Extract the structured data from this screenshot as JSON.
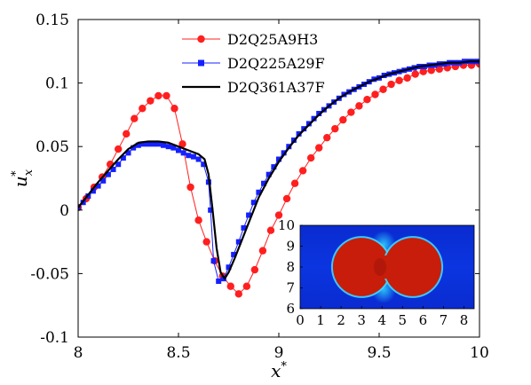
{
  "chart_data": {
    "type": "line",
    "title": "",
    "xlabel": "x",
    "xlabel_sup": "*",
    "ylabel": "u",
    "ylabel_sub": "x",
    "ylabel_sup": "*",
    "xlim": [
      8,
      10
    ],
    "ylim": [
      -0.1,
      0.15
    ],
    "xticks": [
      8,
      8.5,
      9,
      9.5,
      10
    ],
    "xtick_labels": [
      "8",
      "8.5",
      "9",
      "9.5",
      "10"
    ],
    "yticks": [
      -0.1,
      -0.05,
      0,
      0.05,
      0.1,
      0.15
    ],
    "ytick_labels": [
      "-0.1",
      "-0.05",
      "0",
      "0.05",
      "0.1",
      "0.15"
    ],
    "grid": false,
    "legend_position": "top-center",
    "series": [
      {
        "name": "D2Q25A9H3",
        "color": "#ff1f1f",
        "marker": "circle",
        "points": [
          [
            8.0,
            0.002
          ],
          [
            8.04,
            0.009
          ],
          [
            8.08,
            0.018
          ],
          [
            8.12,
            0.026
          ],
          [
            8.16,
            0.036
          ],
          [
            8.2,
            0.048
          ],
          [
            8.24,
            0.06
          ],
          [
            8.28,
            0.072
          ],
          [
            8.32,
            0.08
          ],
          [
            8.36,
            0.086
          ],
          [
            8.4,
            0.09
          ],
          [
            8.44,
            0.09
          ],
          [
            8.48,
            0.08
          ],
          [
            8.52,
            0.052
          ],
          [
            8.56,
            0.018
          ],
          [
            8.6,
            -0.008
          ],
          [
            8.64,
            -0.025
          ],
          [
            8.68,
            -0.04
          ],
          [
            8.72,
            -0.052
          ],
          [
            8.76,
            -0.06
          ],
          [
            8.8,
            -0.066
          ],
          [
            8.84,
            -0.06
          ],
          [
            8.88,
            -0.047
          ],
          [
            8.92,
            -0.032
          ],
          [
            8.96,
            -0.016
          ],
          [
            9.0,
            -0.004
          ],
          [
            9.04,
            0.009
          ],
          [
            9.08,
            0.021
          ],
          [
            9.12,
            0.031
          ],
          [
            9.16,
            0.041
          ],
          [
            9.2,
            0.049
          ],
          [
            9.24,
            0.057
          ],
          [
            9.28,
            0.064
          ],
          [
            9.32,
            0.071
          ],
          [
            9.36,
            0.077
          ],
          [
            9.4,
            0.082
          ],
          [
            9.44,
            0.087
          ],
          [
            9.48,
            0.091
          ],
          [
            9.52,
            0.095
          ],
          [
            9.56,
            0.099
          ],
          [
            9.6,
            0.102
          ],
          [
            9.64,
            0.104
          ],
          [
            9.68,
            0.107
          ],
          [
            9.72,
            0.109
          ],
          [
            9.76,
            0.11
          ],
          [
            9.8,
            0.111
          ],
          [
            9.84,
            0.112
          ],
          [
            9.88,
            0.113
          ],
          [
            9.92,
            0.114
          ],
          [
            9.96,
            0.114
          ],
          [
            10.0,
            0.115
          ]
        ]
      },
      {
        "name": "D2Q225A29F",
        "color": "#1420ff",
        "marker": "square",
        "points": [
          [
            8.0,
            0.002
          ],
          [
            8.025,
            0.006
          ],
          [
            8.05,
            0.011
          ],
          [
            8.075,
            0.015
          ],
          [
            8.1,
            0.019
          ],
          [
            8.125,
            0.023
          ],
          [
            8.15,
            0.028
          ],
          [
            8.175,
            0.032
          ],
          [
            8.2,
            0.036
          ],
          [
            8.225,
            0.041
          ],
          [
            8.25,
            0.045
          ],
          [
            8.275,
            0.049
          ],
          [
            8.3,
            0.051
          ],
          [
            8.325,
            0.052
          ],
          [
            8.35,
            0.052
          ],
          [
            8.375,
            0.052
          ],
          [
            8.4,
            0.052
          ],
          [
            8.425,
            0.051
          ],
          [
            8.45,
            0.05
          ],
          [
            8.475,
            0.049
          ],
          [
            8.5,
            0.047
          ],
          [
            8.525,
            0.045
          ],
          [
            8.55,
            0.043
          ],
          [
            8.575,
            0.042
          ],
          [
            8.6,
            0.04
          ],
          [
            8.625,
            0.036
          ],
          [
            8.65,
            0.022
          ],
          [
            8.66,
            0.0
          ],
          [
            8.675,
            -0.04
          ],
          [
            8.7,
            -0.056
          ],
          [
            8.725,
            -0.054
          ],
          [
            8.75,
            -0.045
          ],
          [
            8.775,
            -0.035
          ],
          [
            8.8,
            -0.025
          ],
          [
            8.825,
            -0.014
          ],
          [
            8.85,
            -0.004
          ],
          [
            8.875,
            0.006
          ],
          [
            8.9,
            0.014
          ],
          [
            8.925,
            0.021
          ],
          [
            8.95,
            0.028
          ],
          [
            8.975,
            0.034
          ],
          [
            9.0,
            0.04
          ],
          [
            9.025,
            0.045
          ],
          [
            9.05,
            0.05
          ],
          [
            9.075,
            0.055
          ],
          [
            9.1,
            0.06
          ],
          [
            9.125,
            0.064
          ],
          [
            9.15,
            0.068
          ],
          [
            9.175,
            0.072
          ],
          [
            9.2,
            0.076
          ],
          [
            9.225,
            0.079
          ],
          [
            9.25,
            0.082
          ],
          [
            9.275,
            0.085
          ],
          [
            9.3,
            0.088
          ],
          [
            9.325,
            0.091
          ],
          [
            9.35,
            0.093
          ],
          [
            9.375,
            0.095
          ],
          [
            9.4,
            0.097
          ],
          [
            9.425,
            0.099
          ],
          [
            9.45,
            0.101
          ],
          [
            9.475,
            0.103
          ],
          [
            9.5,
            0.104
          ],
          [
            9.525,
            0.106
          ],
          [
            9.55,
            0.107
          ],
          [
            9.575,
            0.108
          ],
          [
            9.6,
            0.109
          ],
          [
            9.625,
            0.11
          ],
          [
            9.65,
            0.111
          ],
          [
            9.675,
            0.112
          ],
          [
            9.7,
            0.113
          ],
          [
            9.725,
            0.113
          ],
          [
            9.75,
            0.114
          ],
          [
            9.775,
            0.114
          ],
          [
            9.8,
            0.115
          ],
          [
            9.825,
            0.115
          ],
          [
            9.85,
            0.116
          ],
          [
            9.875,
            0.116
          ],
          [
            9.9,
            0.116
          ],
          [
            9.925,
            0.117
          ],
          [
            9.95,
            0.117
          ],
          [
            9.975,
            0.117
          ],
          [
            10.0,
            0.117
          ]
        ]
      },
      {
        "name": "D2Q361A37F",
        "color": "#000000",
        "marker": "none",
        "points": [
          [
            8.0,
            0.002
          ],
          [
            8.05,
            0.012
          ],
          [
            8.1,
            0.022
          ],
          [
            8.15,
            0.031
          ],
          [
            8.2,
            0.04
          ],
          [
            8.25,
            0.048
          ],
          [
            8.3,
            0.053
          ],
          [
            8.35,
            0.054
          ],
          [
            8.4,
            0.054
          ],
          [
            8.45,
            0.053
          ],
          [
            8.5,
            0.05
          ],
          [
            8.55,
            0.047
          ],
          [
            8.6,
            0.044
          ],
          [
            8.63,
            0.04
          ],
          [
            8.65,
            0.028
          ],
          [
            8.67,
            0.0
          ],
          [
            8.69,
            -0.03
          ],
          [
            8.71,
            -0.049
          ],
          [
            8.73,
            -0.054
          ],
          [
            8.75,
            -0.049
          ],
          [
            8.78,
            -0.038
          ],
          [
            8.82,
            -0.022
          ],
          [
            8.86,
            -0.006
          ],
          [
            8.9,
            0.01
          ],
          [
            8.95,
            0.025
          ],
          [
            9.0,
            0.038
          ],
          [
            9.05,
            0.049
          ],
          [
            9.1,
            0.059
          ],
          [
            9.15,
            0.067
          ],
          [
            9.2,
            0.075
          ],
          [
            9.25,
            0.082
          ],
          [
            9.3,
            0.088
          ],
          [
            9.35,
            0.093
          ],
          [
            9.4,
            0.097
          ],
          [
            9.45,
            0.101
          ],
          [
            9.5,
            0.104
          ],
          [
            9.55,
            0.107
          ],
          [
            9.6,
            0.109
          ],
          [
            9.65,
            0.111
          ],
          [
            9.7,
            0.113
          ],
          [
            9.75,
            0.114
          ],
          [
            9.8,
            0.115
          ],
          [
            9.85,
            0.116
          ],
          [
            9.9,
            0.116
          ],
          [
            9.95,
            0.117
          ],
          [
            10.0,
            0.117
          ]
        ]
      }
    ],
    "inset": {
      "type": "heatmap",
      "xlim": [
        0,
        8.5
      ],
      "ylim": [
        6,
        10
      ],
      "xticks": [
        0,
        1,
        2,
        3,
        4,
        5,
        6,
        7,
        8
      ],
      "xtick_labels": [
        "0",
        "1",
        "2",
        "3",
        "4",
        "5",
        "6",
        "7",
        "8"
      ],
      "yticks": [
        6,
        7,
        8,
        9,
        10
      ],
      "ytick_labels": [
        "6",
        "7",
        "8",
        "9",
        "10"
      ],
      "background_color": "#0a2cd6",
      "droplet_color": "#c71d0a",
      "droplets": [
        {
          "cx": 3.0,
          "cy": 8.0,
          "r": 1.4
        },
        {
          "cx": 5.5,
          "cy": 8.0,
          "r": 1.4
        }
      ]
    }
  }
}
